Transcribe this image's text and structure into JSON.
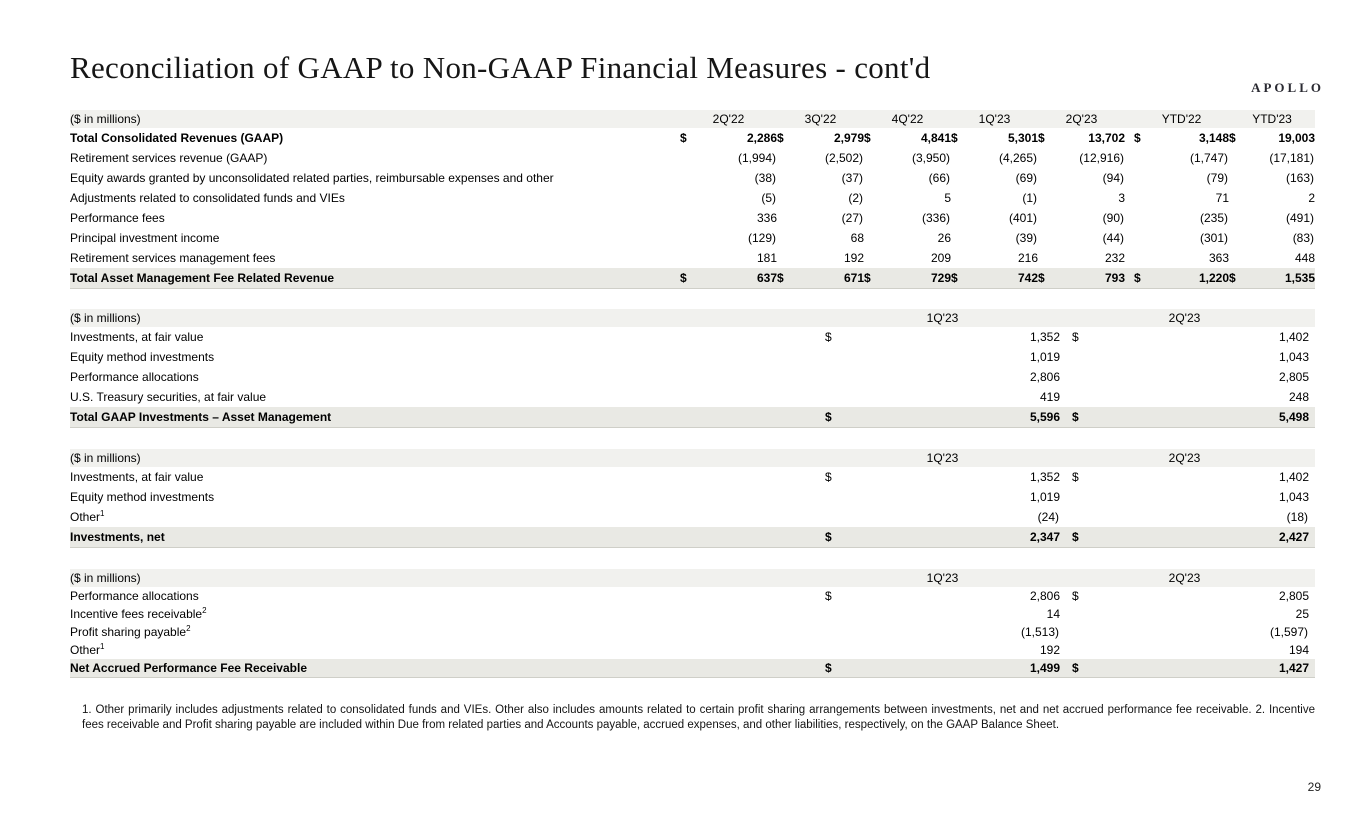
{
  "brand": {
    "logo_text": "APOLLO"
  },
  "title": "Reconciliation of GAAP to Non-GAAP Financial Measures - cont'd",
  "page_number": "29",
  "footnote": "1. Other primarily includes adjustments related to consolidated funds and VIEs. Other also includes amounts related to certain profit sharing arrangements between investments, net and net accrued performance fee receivable. 2. Incentive fees receivable and Profit sharing payable are included within Due from related parties and Accounts payable, accrued expenses, and other liabilities, respectively, on the GAAP Balance Sheet.",
  "tables": [
    {
      "name": "total-asset-management-fee-related-revenue",
      "unit_label": "($ in millions)",
      "columns": [
        "2Q'22",
        "3Q'22",
        "4Q'22",
        "1Q'23",
        "2Q'23",
        "YTD'22",
        "YTD'23"
      ],
      "rows": [
        {
          "label": "Total Consolidated Revenues (GAAP)",
          "bold": true,
          "dollar": true,
          "values": [
            "2,286",
            "2,979",
            "4,841",
            "5,301",
            "13,702",
            "3,148",
            "19,003"
          ]
        },
        {
          "label": "Retirement services revenue (GAAP)",
          "values": [
            "(1,994)",
            "(2,502)",
            "(3,950)",
            "(4,265)",
            "(12,916)",
            "(1,747)",
            "(17,181)"
          ]
        },
        {
          "label": "Equity awards granted by unconsolidated related parties, reimbursable expenses and other",
          "values": [
            "(38)",
            "(37)",
            "(66)",
            "(69)",
            "(94)",
            "(79)",
            "(163)"
          ]
        },
        {
          "label": "Adjustments related to consolidated funds and VIEs",
          "values": [
            "(5)",
            "(2)",
            "5",
            "(1)",
            "3",
            "71",
            "2"
          ]
        },
        {
          "label": "Performance fees",
          "values": [
            "336",
            "(27)",
            "(336)",
            "(401)",
            "(90)",
            "(235)",
            "(491)"
          ]
        },
        {
          "label": "Principal investment income",
          "values": [
            "(129)",
            "68",
            "26",
            "(39)",
            "(44)",
            "(301)",
            "(83)"
          ]
        },
        {
          "label": "Retirement services management fees",
          "values": [
            "181",
            "192",
            "209",
            "216",
            "232",
            "363",
            "448"
          ]
        }
      ],
      "total": {
        "label": "Total Asset Management Fee Related Revenue",
        "dollar": true,
        "values": [
          "637",
          "671",
          "729",
          "742",
          "793",
          "1,220",
          "1,535"
        ]
      }
    },
    {
      "name": "total-gaap-investments-asset-management",
      "unit_label": "($ in millions)",
      "columns": [
        "1Q'23",
        "2Q'23"
      ],
      "rows": [
        {
          "label": "Investments, at fair value",
          "dollar": true,
          "values": [
            "1,352",
            "1,402"
          ]
        },
        {
          "label": "Equity method investments",
          "values": [
            "1,019",
            "1,043"
          ]
        },
        {
          "label": "Performance allocations",
          "values": [
            "2,806",
            "2,805"
          ]
        },
        {
          "label": "U.S. Treasury securities, at fair value",
          "values": [
            "419",
            "248"
          ]
        }
      ],
      "total": {
        "label": "Total GAAP Investments – Asset Management",
        "dollar": true,
        "values": [
          "5,596",
          "5,498"
        ]
      }
    },
    {
      "name": "investments-net",
      "unit_label": "($ in millions)",
      "columns": [
        "1Q'23",
        "2Q'23"
      ],
      "rows": [
        {
          "label": "Investments, at fair value",
          "dollar": true,
          "values": [
            "1,352",
            "1,402"
          ]
        },
        {
          "label": "Equity method investments",
          "values": [
            "1,019",
            "1,043"
          ]
        },
        {
          "label": "Other",
          "sup": "1",
          "values": [
            "(24)",
            "(18)"
          ]
        }
      ],
      "total": {
        "label": "Investments, net",
        "dollar": true,
        "values": [
          "2,347",
          "2,427"
        ]
      }
    },
    {
      "name": "net-accrued-performance-fee-receivable",
      "unit_label": "($ in millions)",
      "columns": [
        "1Q'23",
        "2Q'23"
      ],
      "rows": [
        {
          "label": "Performance allocations",
          "dollar": true,
          "values": [
            "2,806",
            "2,805"
          ]
        },
        {
          "label": "Incentive fees receivable",
          "sup": "2",
          "values": [
            "14",
            "25"
          ]
        },
        {
          "label": "Profit sharing payable",
          "sup": "2",
          "values": [
            "(1,513)",
            "(1,597)"
          ]
        },
        {
          "label": "Other",
          "sup": "1",
          "values": [
            "192",
            "194"
          ]
        }
      ],
      "total": {
        "label": "Net Accrued Performance Fee Receivable",
        "dollar": true,
        "values": [
          "1,499",
          "1,427"
        ]
      }
    }
  ]
}
